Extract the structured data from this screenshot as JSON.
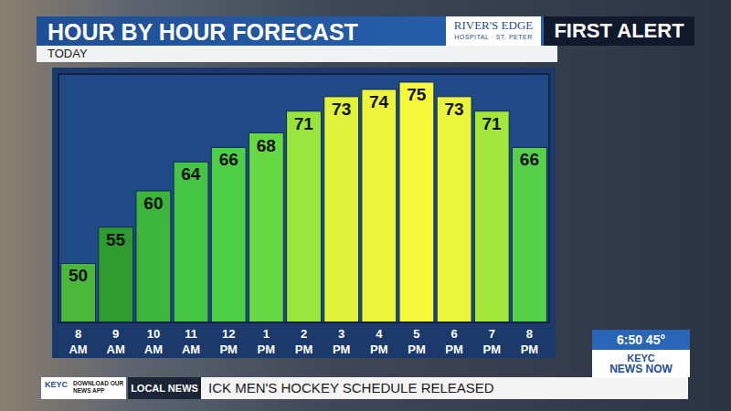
{
  "header": {
    "title": "HOUR BY HOUR FORECAST",
    "subtitle": "TODAY",
    "sponsor": "RIVER'S EDGE",
    "sponsor_sub": "HOSPITAL · ST. PETER",
    "brand": "FIRST ALERT"
  },
  "clock": {
    "time": "6:50",
    "temperature": "45°"
  },
  "station": {
    "call": "KEYC",
    "name": "NEWS NOW"
  },
  "ticker": {
    "app_brand": "KEYC",
    "app_text": "DOWNLOAD OUR NEWS APP",
    "section": "LOCAL NEWS",
    "headline": "ICK MEN'S HOCKEY SCHEDULE RELEASED"
  },
  "chart_data": {
    "type": "bar",
    "categories": [
      "8 AM",
      "9 AM",
      "10 AM",
      "11 AM",
      "12 PM",
      "1 PM",
      "2 PM",
      "3 PM",
      "4 PM",
      "5 PM",
      "6 PM",
      "7 PM",
      "8 PM"
    ],
    "values": [
      50,
      55,
      60,
      64,
      66,
      68,
      71,
      73,
      74,
      75,
      73,
      71,
      66
    ],
    "colors": [
      "#4cb83a",
      "#2f9a30",
      "#3db53b",
      "#45c544",
      "#4ecf48",
      "#66d942",
      "#98e63c",
      "#e0f23a",
      "#ecf53a",
      "#f6f83c",
      "#eaf43a",
      "#a4e73b",
      "#55d048"
    ],
    "ylim": [
      42,
      76
    ],
    "data_labels": true,
    "tick_labels": "x",
    "grid": false
  }
}
